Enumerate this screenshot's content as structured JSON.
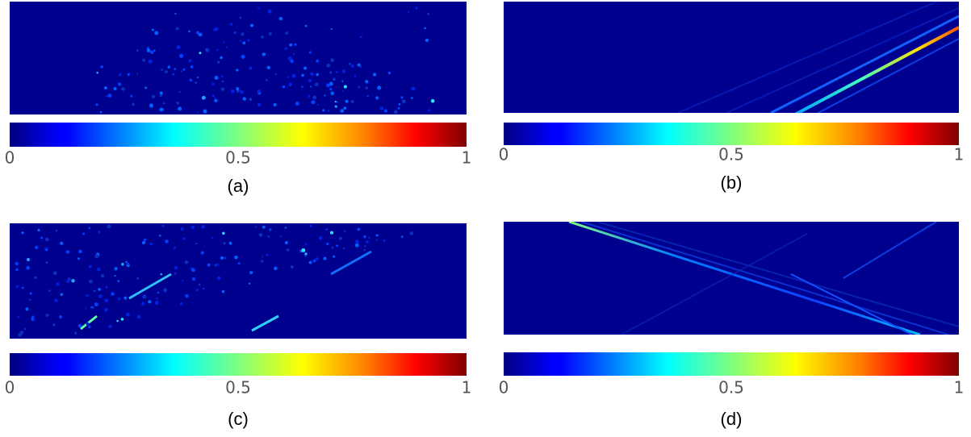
{
  "panels": [
    {
      "label": "(a)",
      "colorbar_ticks": [
        0,
        0.5,
        1
      ]
    },
    {
      "label": "(b)",
      "colorbar_ticks": [
        0,
        0.5,
        1
      ]
    },
    {
      "label": "(c)",
      "colorbar_ticks": [
        0,
        0.5,
        1
      ]
    },
    {
      "label": "(d)",
      "colorbar_ticks": [
        0,
        0.5,
        1
      ]
    }
  ]
}
